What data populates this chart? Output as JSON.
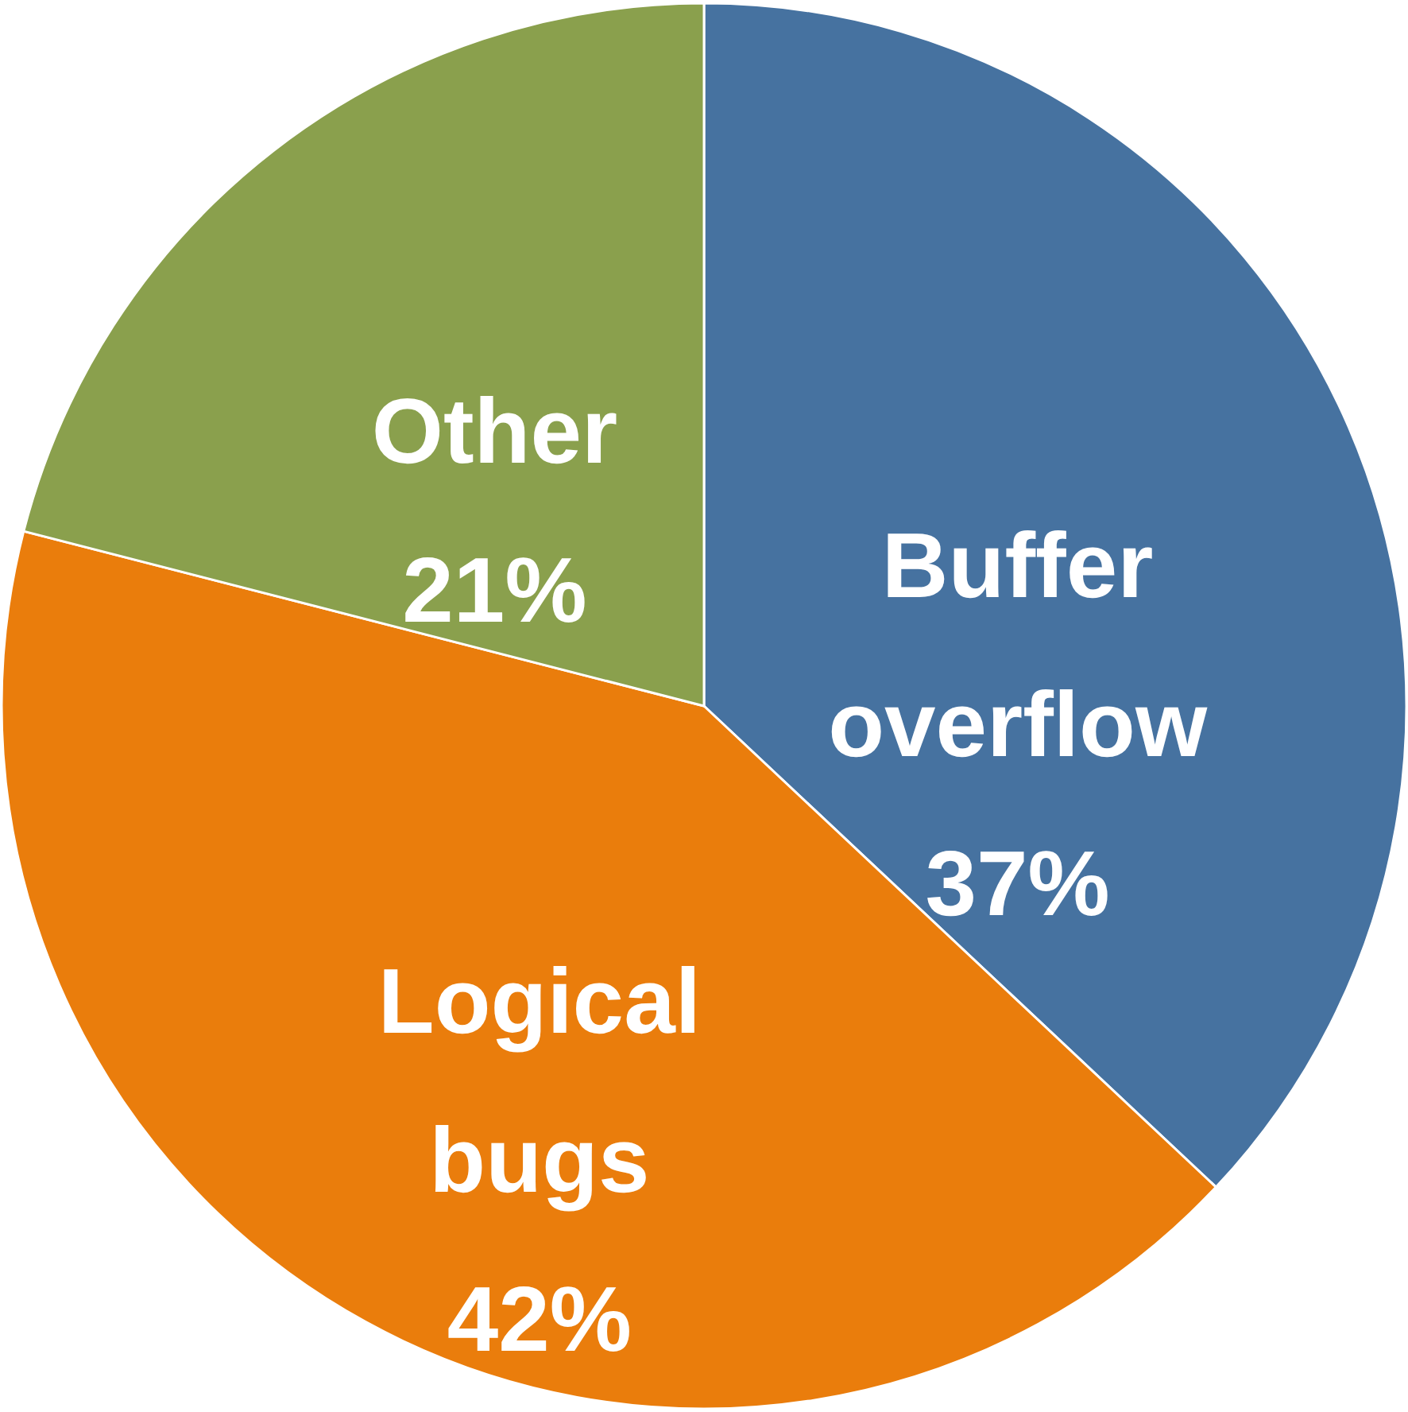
{
  "chart_data": {
    "type": "pie",
    "categories": [
      "Buffer overflow",
      "Logical bugs",
      "Other"
    ],
    "values": [
      37,
      42,
      21
    ],
    "colors": [
      "#4672a0",
      "#ea7d0c",
      "#8aa04d"
    ],
    "value_labels": [
      "37%",
      "42%",
      "21%"
    ]
  }
}
